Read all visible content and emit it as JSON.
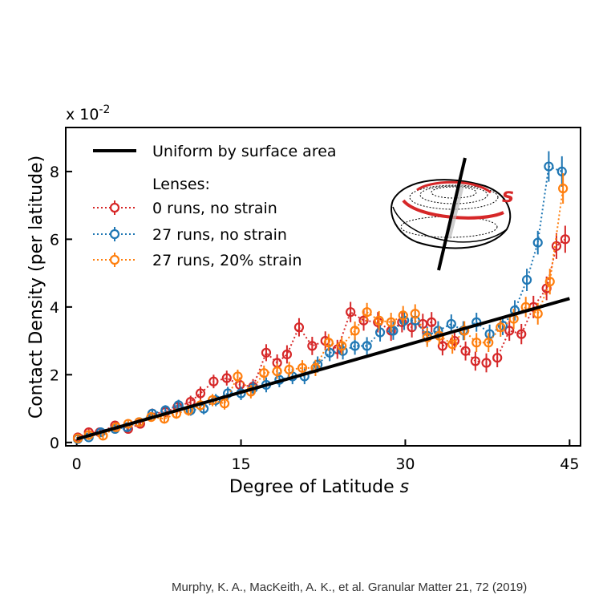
{
  "chart_data": {
    "type": "scatter",
    "title": "",
    "xlabel_text": "Degree of Latitude ",
    "xlabel_var": "s",
    "ylabel": "Contact Density (per latitude)",
    "y_scale_prefix": "x 10",
    "y_scale_exponent": "-2",
    "xlim": [
      -1,
      46
    ],
    "ylim": [
      -0.1,
      9.3
    ],
    "xticks": [
      0,
      15,
      30,
      45
    ],
    "xtick_labels": [
      "0",
      "15",
      "30",
      "45"
    ],
    "yticks": [
      0,
      2,
      4,
      6,
      8
    ],
    "ytick_labels": [
      "0",
      "2",
      "4",
      "6",
      "8"
    ],
    "legend_title": "Lenses:",
    "reference_line": {
      "name": "Uniform by surface area",
      "x": [
        0,
        45
      ],
      "y": [
        0.1,
        4.25
      ],
      "color": "#000000"
    },
    "series": [
      {
        "name": "0 runs, no strain",
        "color": "#d62728",
        "x": [
          0.1,
          1.1,
          2.1,
          3.5,
          4.7,
          5.8,
          6.9,
          8.1,
          9.2,
          10.4,
          11.3,
          12.5,
          13.7,
          14.9,
          16.1,
          17.3,
          18.3,
          19.2,
          20.3,
          21.5,
          22.7,
          23.8,
          25.0,
          26.2,
          27.5,
          28.7,
          29.7,
          30.6,
          31.6,
          32.4,
          33.4,
          34.5,
          35.5,
          36.4,
          37.4,
          38.4,
          39.5,
          40.6,
          41.7,
          42.9,
          43.8,
          44.6
        ],
        "y": [
          0.15,
          0.3,
          0.3,
          0.5,
          0.4,
          0.55,
          0.85,
          0.9,
          1.05,
          1.2,
          1.45,
          1.8,
          1.9,
          1.7,
          1.65,
          2.65,
          2.35,
          2.6,
          3.4,
          2.85,
          3.0,
          2.75,
          3.85,
          3.6,
          3.55,
          3.3,
          3.55,
          3.4,
          3.5,
          3.55,
          2.85,
          3.0,
          2.7,
          2.4,
          2.35,
          2.5,
          3.3,
          3.2,
          4.0,
          4.55,
          5.8,
          6.0
        ],
        "err": [
          0.08,
          0.1,
          0.1,
          0.12,
          0.12,
          0.13,
          0.15,
          0.15,
          0.17,
          0.18,
          0.2,
          0.2,
          0.22,
          0.22,
          0.22,
          0.25,
          0.25,
          0.27,
          0.27,
          0.27,
          0.28,
          0.28,
          0.3,
          0.3,
          0.3,
          0.3,
          0.3,
          0.3,
          0.3,
          0.3,
          0.28,
          0.28,
          0.28,
          0.28,
          0.28,
          0.28,
          0.3,
          0.3,
          0.33,
          0.35,
          0.38,
          0.4
        ]
      },
      {
        "name": "27 runs, no strain",
        "color": "#1f77b4",
        "x": [
          0.1,
          1.1,
          2.2,
          3.5,
          4.6,
          5.7,
          6.9,
          8.1,
          9.3,
          10.4,
          11.6,
          12.7,
          13.8,
          15.0,
          16.1,
          17.3,
          18.5,
          19.7,
          20.8,
          22.0,
          23.1,
          24.3,
          25.4,
          26.5,
          27.7,
          28.9,
          29.9,
          30.9,
          32.0,
          33.0,
          34.2,
          35.3,
          36.5,
          37.7,
          38.9,
          40.0,
          41.1,
          42.1,
          43.1,
          44.3
        ],
        "y": [
          0.1,
          0.15,
          0.3,
          0.4,
          0.45,
          0.6,
          0.85,
          0.95,
          1.1,
          0.95,
          1.0,
          1.25,
          1.45,
          1.45,
          1.6,
          1.7,
          1.85,
          1.95,
          1.95,
          2.3,
          2.65,
          2.7,
          2.85,
          2.85,
          3.25,
          3.3,
          3.6,
          3.6,
          3.15,
          3.3,
          3.5,
          3.3,
          3.55,
          3.2,
          3.45,
          3.9,
          4.8,
          5.9,
          8.15,
          8.0
        ],
        "err": [
          0.08,
          0.08,
          0.1,
          0.11,
          0.12,
          0.13,
          0.14,
          0.15,
          0.16,
          0.16,
          0.17,
          0.18,
          0.19,
          0.2,
          0.21,
          0.22,
          0.22,
          0.23,
          0.23,
          0.24,
          0.25,
          0.25,
          0.26,
          0.26,
          0.27,
          0.27,
          0.28,
          0.28,
          0.27,
          0.28,
          0.28,
          0.28,
          0.28,
          0.28,
          0.28,
          0.3,
          0.33,
          0.35,
          0.45,
          0.45
        ]
      },
      {
        "name": "27 runs, 20% strain",
        "color": "#ff7f0e",
        "x": [
          0.1,
          1.1,
          2.4,
          3.6,
          4.7,
          5.7,
          6.8,
          8.0,
          9.1,
          10.2,
          11.3,
          12.4,
          13.5,
          14.7,
          15.9,
          17.1,
          18.3,
          19.4,
          20.6,
          21.8,
          23.0,
          24.2,
          25.4,
          26.5,
          27.6,
          28.7,
          29.8,
          30.9,
          32.0,
          33.1,
          34.3,
          35.4,
          36.5,
          37.6,
          38.7,
          39.9,
          41.0,
          42.1,
          43.2,
          44.4
        ],
        "y": [
          0.12,
          0.22,
          0.2,
          0.45,
          0.55,
          0.6,
          0.75,
          0.7,
          0.85,
          0.95,
          1.1,
          1.25,
          1.15,
          1.95,
          1.5,
          2.05,
          2.1,
          2.15,
          2.2,
          2.2,
          2.95,
          2.85,
          3.3,
          3.85,
          3.6,
          3.55,
          3.75,
          3.8,
          3.1,
          3.15,
          2.9,
          3.3,
          2.95,
          2.95,
          3.4,
          3.65,
          4.0,
          3.8,
          4.75,
          7.5
        ],
        "err": [
          0.08,
          0.09,
          0.1,
          0.11,
          0.12,
          0.13,
          0.14,
          0.14,
          0.15,
          0.16,
          0.17,
          0.18,
          0.18,
          0.2,
          0.2,
          0.22,
          0.22,
          0.23,
          0.23,
          0.24,
          0.25,
          0.26,
          0.27,
          0.27,
          0.28,
          0.28,
          0.28,
          0.28,
          0.28,
          0.28,
          0.28,
          0.28,
          0.28,
          0.28,
          0.28,
          0.3,
          0.3,
          0.32,
          0.38,
          0.45
        ]
      }
    ],
    "inset": {
      "label": "s",
      "label_color": "#d62728",
      "description_icon": "lens-diagram"
    }
  },
  "citation": "Murphy, K. A., MacKeith, A. K., et al. Granular Matter 21, 72 (2019)"
}
